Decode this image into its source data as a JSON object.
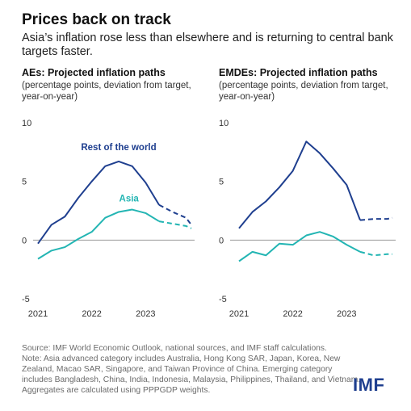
{
  "header": {
    "title": "Prices back on track",
    "subtitle": "Asia’s inflation rose less than elsewhere and is returning to central bank targets faster."
  },
  "footer": {
    "source": "Source: IMF World Economic Outlook, national sources, and IMF staff calculations.",
    "note": "Note: Asia advanced category includes Australia, Hong Kong SAR, Japan, Korea, New Zealand, Macao SAR, Singapore, and Taiwan Province of China. Emerging category includes Bangladesh, China, India, Indonesia, Malaysia, Philippines, Thailand, and Vietnam. Aggregates are calculated using PPPGDP weights.",
    "logo": "IMF"
  },
  "colors": {
    "rest_of_world": "#1f3f8f",
    "asia": "#23b5b3",
    "zero_line": "#9a9a9a",
    "text": "#1a1a1a"
  },
  "chart_data": [
    {
      "type": "line",
      "title": "AEs: Projected inflation paths",
      "subtitle": "(percentage points, deviation from target, year-on-year)",
      "xlabel": "",
      "ylabel": "",
      "ylim": [
        -5,
        10
      ],
      "yticks": [
        10,
        5,
        0,
        -5
      ],
      "xticks": [
        "2021",
        "2022",
        "2023"
      ],
      "xlim": [
        2021.0,
        2023.85
      ],
      "grid": false,
      "series": [
        {
          "name": "Rest of the world",
          "label_position": "above-peak",
          "color": "#1f3f8f",
          "actual": {
            "x": [
              2021.0,
              2021.25,
              2021.5,
              2021.75,
              2022.0,
              2022.25,
              2022.5,
              2022.75,
              2023.0,
              2023.25
            ],
            "y": [
              -0.3,
              1.3,
              2.0,
              3.6,
              5.0,
              6.3,
              6.7,
              6.3,
              4.9,
              3.0
            ]
          },
          "projected": {
            "x": [
              2023.25,
              2023.5,
              2023.75,
              2023.85
            ],
            "y": [
              3.0,
              2.4,
              1.9,
              1.3
            ]
          }
        },
        {
          "name": "Asia",
          "label_position": "above",
          "color": "#23b5b3",
          "actual": {
            "x": [
              2021.0,
              2021.25,
              2021.5,
              2021.75,
              2022.0,
              2022.25,
              2022.5,
              2022.75,
              2023.0,
              2023.25
            ],
            "y": [
              -1.6,
              -0.9,
              -0.6,
              0.1,
              0.7,
              1.9,
              2.4,
              2.6,
              2.3,
              1.6
            ]
          },
          "projected": {
            "x": [
              2023.25,
              2023.5,
              2023.75,
              2023.85
            ],
            "y": [
              1.6,
              1.4,
              1.2,
              1.0
            ]
          }
        }
      ]
    },
    {
      "type": "line",
      "title": "EMDEs: Projected inflation paths",
      "subtitle": "(percentage points, deviation from target, year-on-year)",
      "xlabel": "",
      "ylabel": "",
      "ylim": [
        -5,
        10
      ],
      "yticks": [
        10,
        5,
        0,
        -5
      ],
      "xticks": [
        "2021",
        "2022",
        "2023"
      ],
      "xlim": [
        2021.0,
        2023.85
      ],
      "grid": false,
      "series": [
        {
          "name": "",
          "color": "#1f3f8f",
          "actual": {
            "x": [
              2021.0,
              2021.25,
              2021.5,
              2021.75,
              2022.0,
              2022.25,
              2022.5,
              2022.75,
              2023.0,
              2023.25
            ],
            "y": [
              1.0,
              2.4,
              3.3,
              4.5,
              5.9,
              8.4,
              7.4,
              6.1,
              4.7,
              1.7
            ]
          },
          "projected": {
            "x": [
              2023.25,
              2023.5,
              2023.75,
              2023.85
            ],
            "y": [
              1.7,
              1.8,
              1.8,
              1.9
            ]
          }
        },
        {
          "name": "",
          "color": "#23b5b3",
          "actual": {
            "x": [
              2021.0,
              2021.25,
              2021.5,
              2021.75,
              2022.0,
              2022.25,
              2022.5,
              2022.75,
              2023.0,
              2023.25
            ],
            "y": [
              -1.8,
              -1.0,
              -1.3,
              -0.3,
              -0.4,
              0.4,
              0.7,
              0.3,
              -0.4,
              -1.0
            ]
          },
          "projected": {
            "x": [
              2023.25,
              2023.5,
              2023.75,
              2023.85
            ],
            "y": [
              -1.0,
              -1.3,
              -1.2,
              -1.2
            ]
          }
        }
      ]
    }
  ]
}
